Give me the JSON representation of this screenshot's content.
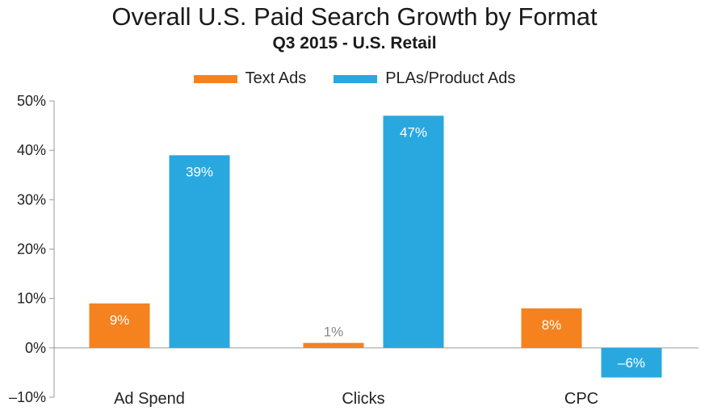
{
  "chart_data": {
    "type": "bar",
    "title": "Overall U.S. Paid Search Growth by Format",
    "subtitle": "Q3 2015 - U.S. Retail",
    "categories": [
      "Ad Spend",
      "Clicks",
      "CPC"
    ],
    "series": [
      {
        "name": "Text Ads",
        "color": "#f5821f",
        "values": [
          9,
          1,
          8
        ],
        "value_labels": [
          "9%",
          "1%",
          "8%"
        ],
        "label_colors": [
          "#ffffff",
          "#888888",
          "#ffffff"
        ]
      },
      {
        "name": "PLAs/Product Ads",
        "color": "#29a8e0",
        "values": [
          39,
          47,
          -6
        ],
        "value_labels": [
          "39%",
          "47%",
          "–6%"
        ],
        "label_colors": [
          "#ffffff",
          "#ffffff",
          "#ffffff"
        ]
      }
    ],
    "yticks": [
      50,
      40,
      30,
      20,
      10,
      0,
      -10
    ],
    "ytick_labels": [
      "50%",
      "40%",
      "30%",
      "20%",
      "10%",
      "0%",
      "–10%"
    ],
    "ylim": [
      -10,
      50
    ],
    "legend": "top-center",
    "grid": false
  }
}
